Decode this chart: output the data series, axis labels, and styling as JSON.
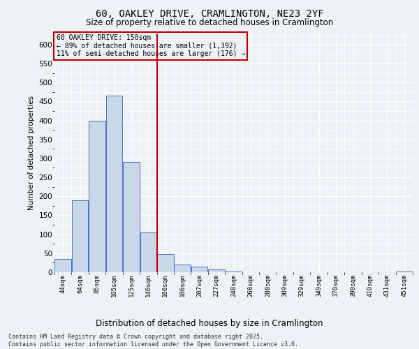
{
  "title_line1": "60, OAKLEY DRIVE, CRAMLINGTON, NE23 2YF",
  "title_line2": "Size of property relative to detached houses in Cramlington",
  "xlabel": "Distribution of detached houses by size in Cramlington",
  "ylabel": "Number of detached properties",
  "bin_labels": [
    "44sqm",
    "64sqm",
    "85sqm",
    "105sqm",
    "125sqm",
    "146sqm",
    "166sqm",
    "186sqm",
    "207sqm",
    "227sqm",
    "248sqm",
    "268sqm",
    "288sqm",
    "309sqm",
    "329sqm",
    "349sqm",
    "370sqm",
    "390sqm",
    "410sqm",
    "431sqm",
    "451sqm"
  ],
  "bar_heights": [
    35,
    190,
    400,
    465,
    290,
    105,
    48,
    20,
    14,
    8,
    2,
    0,
    0,
    0,
    0,
    0,
    0,
    0,
    0,
    0,
    1
  ],
  "bar_color": "#c8d8e8",
  "bar_edge_color": "#4472c4",
  "vline_x": 5.5,
  "vline_color": "#c00000",
  "annotation_text": "60 OAKLEY DRIVE: 150sqm\n← 89% of detached houses are smaller (1,392)\n11% of semi-detached houses are larger (176) →",
  "annotation_box_color": "#c00000",
  "ylim": [
    0,
    630
  ],
  "yticks": [
    0,
    50,
    100,
    150,
    200,
    250,
    300,
    350,
    400,
    450,
    500,
    550,
    600
  ],
  "footer_text": "Contains HM Land Registry data © Crown copyright and database right 2025.\nContains public sector information licensed under the Open Government Licence v3.0.",
  "bg_color": "#eef2f7",
  "grid_color": "#ffffff"
}
